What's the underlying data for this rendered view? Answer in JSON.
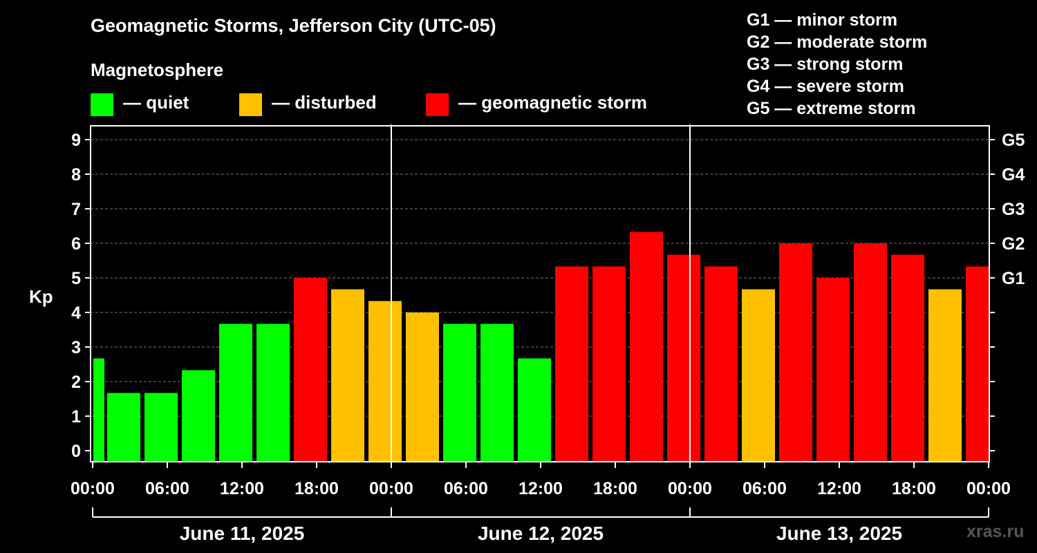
{
  "title": "Geomagnetic Storms, Jefferson City (UTC-05)",
  "magnetosphere_title": "Magnetosphere",
  "legend": [
    {
      "label": "— quiet",
      "color": "#00ff00"
    },
    {
      "label": "— disturbed",
      "color": "#ffc000"
    },
    {
      "label": "— geomagnetic storm",
      "color": "#ff0000"
    }
  ],
  "g_scale": [
    "G1 — minor storm",
    "G2 — moderate storm",
    "G3 — strong storm",
    "G4 — severe storm",
    "G5 — extreme storm"
  ],
  "watermark": "xras.ru",
  "colors": {
    "quiet": "#00ff00",
    "disturbed": "#ffc000",
    "storm": "#ff0000",
    "background": "#000000",
    "axis": "#ffffff"
  },
  "chart_data": {
    "type": "bar",
    "ylabel": "Kp",
    "ylim": [
      0,
      9
    ],
    "yticks": [
      0,
      1,
      2,
      3,
      4,
      5,
      6,
      7,
      8,
      9
    ],
    "right_axis_labels": [
      {
        "kp": 5,
        "label": "G1"
      },
      {
        "kp": 6,
        "label": "G2"
      },
      {
        "kp": 7,
        "label": "G3"
      },
      {
        "kp": 8,
        "label": "G4"
      },
      {
        "kp": 9,
        "label": "G5"
      }
    ],
    "grid": true,
    "x_tick_labels": [
      "00:00",
      "06:00",
      "12:00",
      "18:00",
      "00:00",
      "06:00",
      "12:00",
      "18:00",
      "00:00",
      "06:00",
      "12:00",
      "18:00",
      "00:00"
    ],
    "dates": [
      "June 11, 2025",
      "June 12, 2025",
      "June 13, 2025"
    ],
    "bars": [
      {
        "time": "June 11, 2025 00:00",
        "kp": 2.67,
        "level": "quiet"
      },
      {
        "time": "June 11, 2025 01:00",
        "kp": 1.67,
        "level": "quiet"
      },
      {
        "time": "June 11, 2025 04:00",
        "kp": 1.67,
        "level": "quiet"
      },
      {
        "time": "June 11, 2025 07:00",
        "kp": 2.33,
        "level": "quiet"
      },
      {
        "time": "June 11, 2025 10:00",
        "kp": 3.67,
        "level": "quiet"
      },
      {
        "time": "June 11, 2025 13:00",
        "kp": 3.67,
        "level": "quiet"
      },
      {
        "time": "June 11, 2025 16:00",
        "kp": 5.0,
        "level": "storm"
      },
      {
        "time": "June 11, 2025 19:00",
        "kp": 4.67,
        "level": "disturbed"
      },
      {
        "time": "June 11, 2025 22:00",
        "kp": 4.33,
        "level": "disturbed"
      },
      {
        "time": "June 12, 2025 01:00",
        "kp": 4.0,
        "level": "disturbed"
      },
      {
        "time": "June 12, 2025 04:00",
        "kp": 3.67,
        "level": "quiet"
      },
      {
        "time": "June 12, 2025 07:00",
        "kp": 3.67,
        "level": "quiet"
      },
      {
        "time": "June 12, 2025 10:00",
        "kp": 2.67,
        "level": "quiet"
      },
      {
        "time": "June 12, 2025 13:00",
        "kp": 5.33,
        "level": "storm"
      },
      {
        "time": "June 12, 2025 16:00",
        "kp": 5.33,
        "level": "storm"
      },
      {
        "time": "June 12, 2025 19:00",
        "kp": 6.33,
        "level": "storm"
      },
      {
        "time": "June 12, 2025 22:00",
        "kp": 5.67,
        "level": "storm"
      },
      {
        "time": "June 13, 2025 01:00",
        "kp": 5.33,
        "level": "storm"
      },
      {
        "time": "June 13, 2025 04:00",
        "kp": 4.67,
        "level": "disturbed"
      },
      {
        "time": "June 13, 2025 07:00",
        "kp": 6.0,
        "level": "storm"
      },
      {
        "time": "June 13, 2025 10:00",
        "kp": 5.0,
        "level": "storm"
      },
      {
        "time": "June 13, 2025 13:00",
        "kp": 6.0,
        "level": "storm"
      },
      {
        "time": "June 13, 2025 16:00",
        "kp": 5.67,
        "level": "storm"
      },
      {
        "time": "June 13, 2025 19:00",
        "kp": 4.67,
        "level": "disturbed"
      },
      {
        "time": "June 13, 2025 22:00",
        "kp": 5.33,
        "level": "storm"
      }
    ]
  }
}
